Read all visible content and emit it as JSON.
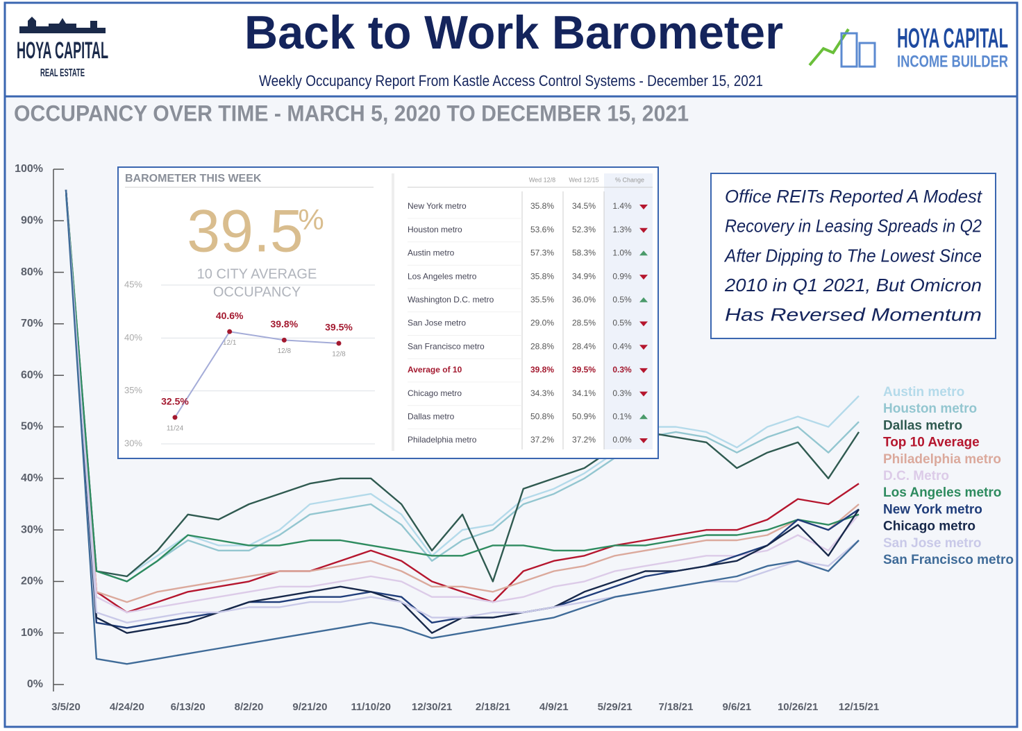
{
  "header": {
    "title": "Back to Work Barometer",
    "subtitle": "Weekly Occupancy Report From Kastle Access Control Systems - December 15, 2021",
    "left_logo": [
      "HOYA CAPITAL",
      "REAL ESTATE"
    ],
    "right_logo": [
      "HOYA CAPITAL",
      "INCOME BUILDER"
    ]
  },
  "annotation": [
    "Office REITs Reported A Modest",
    "Recovery in Leasing Spreads in Q2",
    "After Dipping to The Lowest Since",
    "2010 in Q1 2021, But Omicron",
    "Has Reversed Momentum"
  ],
  "inset": {
    "title": "BAROMETER THIS WEEK",
    "headline_value": "39.5",
    "headline_unit": "%",
    "headline_caption": [
      "10 CITY AVERAGE",
      "OCCUPANCY"
    ]
  },
  "table": {
    "columns": [
      "Wed 12/8",
      "Wed 12/15",
      "% Change"
    ],
    "highlight_row": 7,
    "rows": [
      {
        "name": "New York metro",
        "prev": "35.8%",
        "curr": "34.5%",
        "change": "1.4%",
        "trend": "down"
      },
      {
        "name": "Houston metro",
        "prev": "53.6%",
        "curr": "52.3%",
        "change": "1.3%",
        "trend": "down"
      },
      {
        "name": "Austin metro",
        "prev": "57.3%",
        "curr": "58.3%",
        "change": "1.0%",
        "trend": "up"
      },
      {
        "name": "Los Angeles metro",
        "prev": "35.8%",
        "curr": "34.9%",
        "change": "0.9%",
        "trend": "down"
      },
      {
        "name": "Washington D.C. metro",
        "prev": "35.5%",
        "curr": "36.0%",
        "change": "0.5%",
        "trend": "up"
      },
      {
        "name": "San Jose metro",
        "prev": "29.0%",
        "curr": "28.5%",
        "change": "0.5%",
        "trend": "down"
      },
      {
        "name": "San Francisco metro",
        "prev": "28.8%",
        "curr": "28.4%",
        "change": "0.4%",
        "trend": "down"
      },
      {
        "name": "Average of 10",
        "prev": "39.8%",
        "curr": "39.5%",
        "change": "0.3%",
        "trend": "down"
      },
      {
        "name": "Chicago metro",
        "prev": "34.3%",
        "curr": "34.1%",
        "change": "0.3%",
        "trend": "down"
      },
      {
        "name": "Dallas metro",
        "prev": "50.8%",
        "curr": "50.9%",
        "change": "0.1%",
        "trend": "up"
      },
      {
        "name": "Philadelphia metro",
        "prev": "37.2%",
        "curr": "37.2%",
        "change": "0.0%",
        "trend": "down"
      }
    ]
  },
  "chart_data": [
    {
      "type": "line",
      "title": "OCCUPANCY OVER TIME - MARCH 5, 2020 TO DECEMBER 15, 2021",
      "categories": [
        "3/5/20",
        null,
        "4/24/20",
        null,
        "6/13/20",
        null,
        "8/2/20",
        null,
        "9/21/20",
        null,
        "11/10/20",
        null,
        "12/30/21",
        null,
        "2/18/21",
        null,
        "4/9/21",
        null,
        "5/29/21",
        null,
        "7/18/21",
        null,
        "9/6/21",
        null,
        "10/26/21",
        null,
        "12/15/21"
      ],
      "ylim": [
        0,
        100
      ],
      "yticks": [
        {
          "value": 0,
          "label": "0%"
        },
        {
          "value": 10,
          "label": "10%"
        },
        {
          "value": 20,
          "label": "20%"
        },
        {
          "value": 30,
          "label": "30%"
        },
        {
          "value": 40,
          "label": "40%"
        },
        {
          "value": 50,
          "label": "50%"
        },
        {
          "value": 60,
          "label": "60%"
        },
        {
          "value": 70,
          "label": "70%"
        },
        {
          "value": 80,
          "label": "80%"
        },
        {
          "value": 90,
          "label": "90%"
        },
        {
          "value": 100,
          "label": "100%"
        }
      ],
      "series": [
        {
          "name": "Austin metro",
          "color": "#b4daea",
          "values": [
            95,
            22,
            21,
            25,
            29,
            27,
            27,
            30,
            35,
            36,
            37,
            33,
            25,
            30,
            31,
            36,
            38,
            41,
            45,
            50,
            50,
            49,
            46,
            50,
            52,
            50,
            56
          ]
        },
        {
          "name": "Houston metro",
          "color": "#93c6d0",
          "values": [
            95,
            22,
            20,
            24,
            28,
            26,
            26,
            29,
            33,
            34,
            35,
            31,
            24,
            28,
            30,
            35,
            37,
            40,
            44,
            48,
            49,
            48,
            45,
            48,
            50,
            45,
            51
          ]
        },
        {
          "name": "Dallas metro",
          "color": "#2f5a50",
          "values": [
            96,
            22,
            21,
            26,
            33,
            32,
            35,
            37,
            39,
            40,
            40,
            35,
            26,
            33,
            20,
            38,
            40,
            42,
            46,
            49,
            48,
            47,
            42,
            45,
            47,
            40,
            49
          ]
        },
        {
          "name": "Top 10 Average",
          "color": "#b5162e",
          "values": [
            96,
            18,
            14,
            16,
            18,
            19,
            20,
            22,
            22,
            24,
            26,
            24,
            20,
            18,
            16,
            22,
            24,
            25,
            27,
            28,
            29,
            30,
            30,
            32,
            36,
            35,
            39
          ]
        },
        {
          "name": "Philadelphia metro",
          "color": "#dba99c",
          "values": [
            96,
            18,
            16,
            18,
            19,
            20,
            21,
            22,
            22,
            23,
            24,
            22,
            19,
            19,
            18,
            20,
            22,
            23,
            25,
            26,
            27,
            28,
            28,
            29,
            32,
            30,
            35
          ]
        },
        {
          "name": "D.C. Metro",
          "color": "#dccbe8",
          "values": [
            96,
            17,
            14,
            15,
            16,
            17,
            18,
            19,
            19,
            20,
            21,
            20,
            17,
            17,
            16,
            17,
            19,
            20,
            22,
            23,
            24,
            25,
            25,
            26,
            29,
            26,
            33
          ]
        },
        {
          "name": "Los Angeles metro",
          "color": "#2e8b5f",
          "values": [
            96,
            22,
            20,
            24,
            29,
            28,
            27,
            27,
            28,
            28,
            27,
            26,
            25,
            25,
            27,
            27,
            26,
            26,
            27,
            27,
            28,
            29,
            29,
            30,
            32,
            31,
            33
          ]
        },
        {
          "name": "New York metro",
          "color": "#1f3d7a",
          "values": [
            96,
            12,
            11,
            12,
            13,
            14,
            16,
            16,
            17,
            17,
            18,
            17,
            12,
            13,
            13,
            14,
            15,
            17,
            19,
            21,
            22,
            23,
            25,
            27,
            32,
            30,
            34
          ]
        },
        {
          "name": "Chicago metro",
          "color": "#17284a",
          "values": [
            96,
            13,
            10,
            11,
            12,
            14,
            16,
            17,
            18,
            19,
            18,
            16,
            10,
            13,
            13,
            14,
            15,
            18,
            20,
            22,
            22,
            23,
            24,
            27,
            31,
            25,
            34
          ]
        },
        {
          "name": "San Jose metro",
          "color": "#c9c9e8",
          "values": [
            96,
            14,
            12,
            13,
            14,
            14,
            15,
            15,
            16,
            16,
            17,
            16,
            13,
            13,
            14,
            14,
            15,
            16,
            17,
            18,
            19,
            20,
            20,
            22,
            24,
            23,
            28
          ]
        },
        {
          "name": "San Francisco metro",
          "color": "#3f6b98",
          "values": [
            96,
            5,
            4,
            5,
            6,
            7,
            8,
            9,
            10,
            11,
            12,
            11,
            9,
            10,
            11,
            12,
            13,
            15,
            17,
            18,
            19,
            20,
            21,
            23,
            24,
            22,
            28
          ]
        }
      ]
    },
    {
      "type": "line",
      "categories": [
        "11/24",
        "12/1",
        "12/8",
        "12/8"
      ],
      "values": [
        32.5,
        40.6,
        39.8,
        39.5
      ],
      "value_labels": [
        "32.5%",
        "40.6%",
        "39.8%",
        "39.5%"
      ],
      "color": "#a4acd8",
      "point_color": "#a3192f",
      "ylim": [
        30,
        45
      ],
      "yticks": [
        {
          "value": 30,
          "label": "30%"
        },
        {
          "value": 35,
          "label": "35%"
        },
        {
          "value": 40,
          "label": "40%"
        },
        {
          "value": 45,
          "label": "45%"
        }
      ]
    }
  ]
}
